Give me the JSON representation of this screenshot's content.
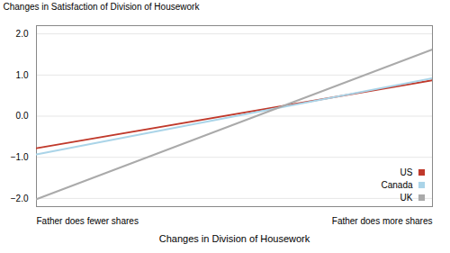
{
  "chart_data": {
    "type": "line",
    "xlabel": "Changes in Division of Housework",
    "ylabel": "Changes in Satisfaction of Division of Housework",
    "categories": [
      "Father does fewer shares",
      "Father does more shares"
    ],
    "series": [
      {
        "name": "US",
        "color": "#c0392b",
        "values": [
          -0.78,
          0.87
        ]
      },
      {
        "name": "Canada",
        "color": "#aad4e8",
        "values": [
          -0.93,
          0.92
        ]
      },
      {
        "name": "UK",
        "color": "#aaaaaa",
        "values": [
          -2.02,
          1.62
        ]
      }
    ],
    "ylim": [
      -2.2,
      2.2
    ],
    "yticks": [
      -2,
      -1,
      0,
      1,
      2
    ],
    "grid": true,
    "legend": "lower right"
  }
}
